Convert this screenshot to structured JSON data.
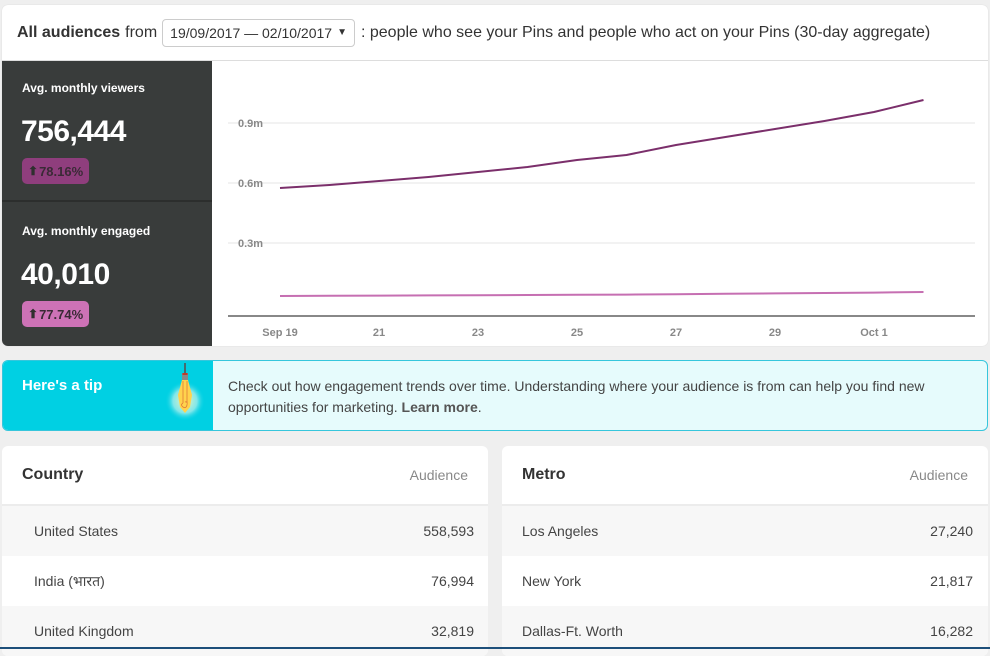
{
  "header": {
    "title": "All audiences",
    "from_label": "from",
    "date_range": "19/09/2017 — 02/10/2017",
    "date_caret_icon": "▼",
    "description": ": people who see your Pins and people who act on your Pins (30-day aggregate)"
  },
  "stats": [
    {
      "label": "Avg. monthly viewers",
      "value": "756,444",
      "change": "78.16%",
      "arrow_icon": "⬆",
      "badge_color": "#8f3e7d"
    },
    {
      "label": "Avg. monthly engaged",
      "value": "40,010",
      "change": "77.74%",
      "arrow_icon": "⬆",
      "badge_color": "#cd72b6"
    }
  ],
  "colors": {
    "viewers_line": "#7b2f6b",
    "engaged_line": "#c66fb2",
    "tip_accent": "#00d0e3",
    "tip_bg": "#e6fbfc",
    "stats_bg": "#393c3b"
  },
  "chart_data": {
    "type": "line",
    "title": "",
    "xlabel": "",
    "ylabel": "",
    "x": [
      "Sep 19",
      "Sep 20",
      "Sep 21",
      "Sep 22",
      "Sep 23",
      "Sep 24",
      "Sep 25",
      "Sep 26",
      "Sep 27",
      "Sep 28",
      "Sep 29",
      "Sep 30",
      "Oct 1",
      "Oct 2"
    ],
    "x_tick_labels": [
      "Sep 19",
      "21",
      "23",
      "25",
      "27",
      "29",
      "Oct 1"
    ],
    "y_tick_labels": [
      "0.3m",
      "0.6m",
      "0.9m"
    ],
    "ylim": [
      0,
      1.05
    ],
    "grid": true,
    "legend": "none",
    "series": [
      {
        "name": "Avg. monthly viewers (m)",
        "values": [
          0.575,
          0.59,
          0.61,
          0.63,
          0.655,
          0.68,
          0.715,
          0.74,
          0.79,
          0.83,
          0.87,
          0.91,
          0.955,
          1.015
        ]
      },
      {
        "name": "Avg. monthly engaged (m)",
        "values": [
          0.035,
          0.036,
          0.037,
          0.038,
          0.039,
          0.04,
          0.041,
          0.042,
          0.044,
          0.046,
          0.048,
          0.05,
          0.052,
          0.055
        ]
      }
    ]
  },
  "tip": {
    "title": "Here's a tip",
    "bulb_icon": "lightbulb",
    "text": "Check out how engagement trends over time. Understanding where your audience is from can help you find new opportunities for marketing.",
    "link": "Learn more",
    "link_suffix": "."
  },
  "country_table": {
    "header": "Country",
    "column": "Audience",
    "rows": [
      {
        "name": "United States",
        "value": "558,593"
      },
      {
        "name": "India (भारत)",
        "value": "76,994"
      },
      {
        "name": "United Kingdom",
        "value": "32,819"
      }
    ]
  },
  "metro_table": {
    "header": "Metro",
    "column": "Audience",
    "rows": [
      {
        "name": "Los Angeles",
        "value": "27,240"
      },
      {
        "name": "New York",
        "value": "21,817"
      },
      {
        "name": "Dallas-Ft. Worth",
        "value": "16,282"
      }
    ]
  }
}
